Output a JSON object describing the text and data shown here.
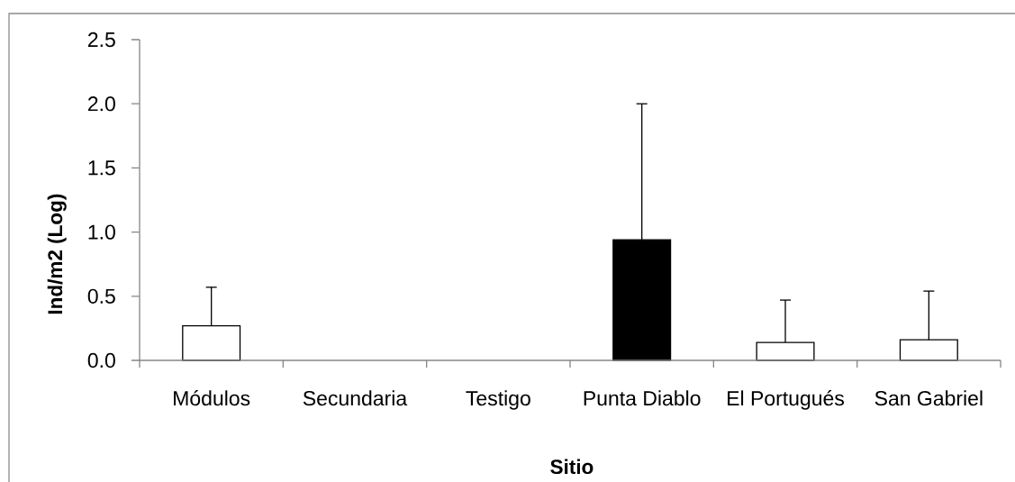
{
  "chart_data": {
    "type": "bar",
    "xlabel": "Sitio",
    "ylabel": "Ind/m2 (Log)",
    "categories": [
      "Módulos",
      "Secundaria",
      "Testigo",
      "Punta Diablo",
      "El Portugués",
      "San Gabriel"
    ],
    "values": [
      0.27,
      0,
      0,
      0.94,
      0.14,
      0.16
    ],
    "colors": [
      "#ffffff",
      "#ffffff",
      "#ffffff",
      "#000000",
      "#ffffff",
      "#ffffff"
    ],
    "errors": [
      [
        0.27,
        0.57
      ],
      null,
      null,
      [
        0.94,
        2.0
      ],
      [
        0.14,
        0.47
      ],
      [
        0.16,
        0.54
      ]
    ],
    "ylim": [
      0,
      2.5
    ],
    "yticks": [
      {
        "value": 0,
        "label": "0.0"
      },
      {
        "value": 0.5,
        "label": "0.5"
      },
      {
        "value": 1,
        "label": "1.0"
      },
      {
        "value": 1.5,
        "label": "1.5"
      },
      {
        "value": 2,
        "label": "2.0"
      },
      {
        "value": 2.5,
        "label": "2.5"
      }
    ]
  }
}
